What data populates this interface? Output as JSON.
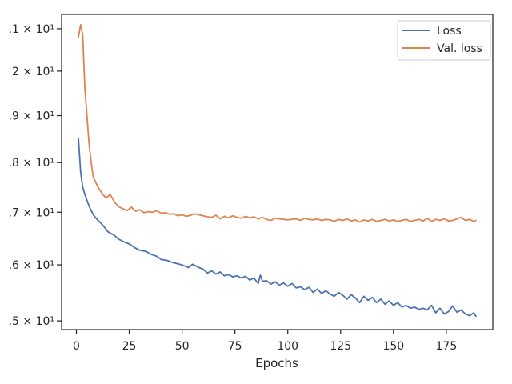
{
  "chart_data": {
    "type": "line",
    "xlabel": "Epochs",
    "ylabel": "",
    "y_scale": "log",
    "xlim": [
      -7,
      197
    ],
    "ylim": [
      14.85,
      21.35
    ],
    "x_ticks": [
      0,
      25,
      50,
      75,
      100,
      125,
      150,
      175
    ],
    "x_tick_labels": [
      "0",
      "25",
      "50",
      "75",
      "100",
      "125",
      "150",
      "175"
    ],
    "y_ticks": [
      15,
      16,
      17,
      18,
      19,
      20,
      21
    ],
    "y_tick_labels": [
      ".5 × 10¹",
      ".6 × 10¹",
      ".7 × 10¹",
      ".8 × 10¹",
      ".9 × 10¹",
      "2 × 10¹",
      ".1 × 10¹"
    ],
    "legend": "top-right",
    "grid": false,
    "series": [
      {
        "name": "Loss",
        "color": "#4c72b0",
        "x": [
          1,
          2,
          3,
          4,
          6,
          8,
          10,
          12,
          15,
          18,
          20,
          23,
          25,
          28,
          30,
          33,
          35,
          38,
          40,
          43,
          45,
          48,
          50,
          53,
          55,
          58,
          60,
          62,
          64,
          66,
          68,
          70,
          72,
          74,
          76,
          78,
          80,
          82,
          84,
          86,
          87,
          88,
          90,
          92,
          94,
          96,
          98,
          100,
          102,
          104,
          106,
          108,
          110,
          112,
          114,
          116,
          118,
          120,
          122,
          124,
          126,
          128,
          130,
          132,
          134,
          136,
          138,
          140,
          142,
          144,
          146,
          148,
          150,
          152,
          154,
          156,
          158,
          160,
          162,
          164,
          166,
          168,
          170,
          172,
          174,
          176,
          178,
          180,
          182,
          184,
          186,
          188,
          189
        ],
        "values": [
          18.5,
          17.8,
          17.5,
          17.35,
          17.12,
          16.95,
          16.85,
          16.77,
          16.62,
          16.55,
          16.48,
          16.42,
          16.39,
          16.31,
          16.27,
          16.25,
          16.2,
          16.16,
          16.1,
          16.08,
          16.05,
          16.02,
          16.0,
          15.95,
          16.01,
          15.95,
          15.92,
          15.85,
          15.89,
          15.83,
          15.87,
          15.8,
          15.82,
          15.78,
          15.8,
          15.76,
          15.79,
          15.72,
          15.76,
          15.66,
          15.81,
          15.7,
          15.71,
          15.65,
          15.69,
          15.63,
          15.67,
          15.61,
          15.66,
          15.58,
          15.6,
          15.55,
          15.59,
          15.5,
          15.56,
          15.48,
          15.53,
          15.47,
          15.43,
          15.5,
          15.45,
          15.38,
          15.46,
          15.4,
          15.32,
          15.43,
          15.36,
          15.41,
          15.32,
          15.38,
          15.29,
          15.35,
          15.27,
          15.32,
          15.24,
          15.27,
          15.22,
          15.24,
          15.2,
          15.22,
          15.19,
          15.27,
          15.14,
          15.22,
          15.12,
          15.16,
          15.26,
          15.15,
          15.19,
          15.12,
          15.09,
          15.14,
          15.08
        ]
      },
      {
        "name": "Val. loss",
        "color": "#dd8452",
        "x": [
          1,
          2,
          3,
          4,
          5,
          6,
          7,
          8,
          10,
          12,
          14,
          16,
          18,
          20,
          22,
          24,
          26,
          28,
          30,
          32,
          34,
          36,
          38,
          40,
          42,
          44,
          46,
          48,
          50,
          52,
          54,
          56,
          58,
          60,
          62,
          64,
          66,
          68,
          70,
          72,
          74,
          76,
          78,
          80,
          82,
          84,
          86,
          88,
          90,
          92,
          94,
          96,
          98,
          100,
          102,
          104,
          106,
          108,
          110,
          112,
          114,
          116,
          118,
          120,
          122,
          124,
          126,
          128,
          130,
          132,
          134,
          136,
          138,
          140,
          142,
          144,
          146,
          148,
          150,
          152,
          154,
          156,
          158,
          160,
          162,
          164,
          166,
          168,
          170,
          172,
          174,
          176,
          178,
          180,
          182,
          184,
          186,
          188,
          189
        ],
        "values": [
          20.8,
          21.1,
          20.85,
          19.6,
          19.0,
          18.4,
          18.0,
          17.7,
          17.52,
          17.38,
          17.28,
          17.35,
          17.2,
          17.11,
          17.07,
          17.03,
          17.1,
          17.02,
          17.05,
          16.99,
          17.01,
          17.0,
          17.03,
          16.98,
          16.99,
          16.96,
          16.97,
          16.93,
          16.95,
          16.92,
          16.94,
          16.97,
          16.95,
          16.93,
          16.91,
          16.9,
          16.94,
          16.87,
          16.92,
          16.89,
          16.93,
          16.9,
          16.88,
          16.92,
          16.89,
          16.91,
          16.87,
          16.9,
          16.86,
          16.84,
          16.88,
          16.87,
          16.86,
          16.85,
          16.86,
          16.87,
          16.84,
          16.88,
          16.86,
          16.85,
          16.87,
          16.84,
          16.86,
          16.85,
          16.82,
          16.86,
          16.84,
          16.87,
          16.83,
          16.85,
          16.81,
          16.85,
          16.83,
          16.86,
          16.82,
          16.84,
          16.86,
          16.83,
          16.85,
          16.82,
          16.84,
          16.86,
          16.82,
          16.84,
          16.86,
          16.83,
          16.88,
          16.82,
          16.86,
          16.84,
          16.87,
          16.83,
          16.84,
          16.87,
          16.9,
          16.84,
          16.86,
          16.82,
          16.84
        ]
      }
    ]
  }
}
